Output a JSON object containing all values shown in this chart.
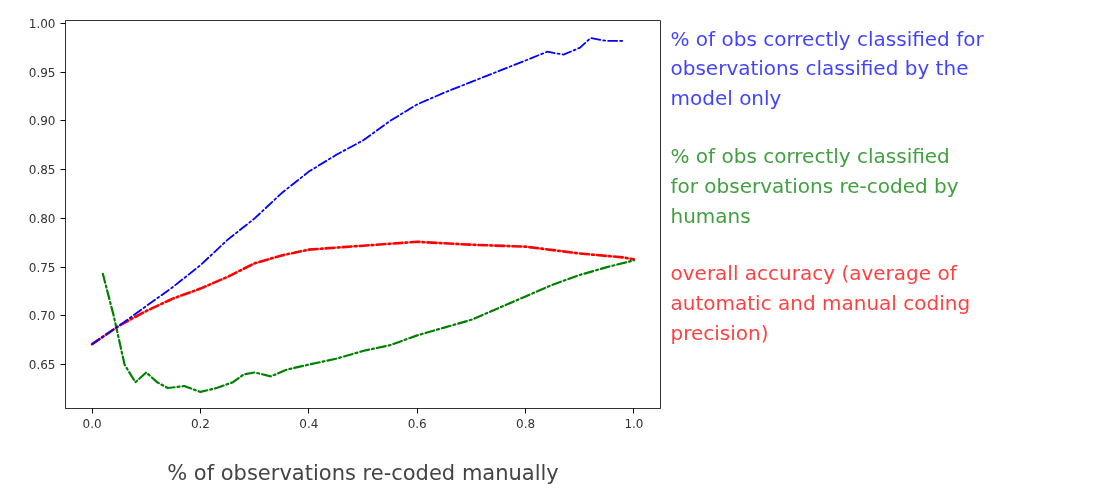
{
  "chart_data": {
    "type": "line",
    "xlabel": "% of observations re-coded manually",
    "xlim": [
      -0.049,
      1.049
    ],
    "ylim": [
      0.605,
      1.003
    ],
    "xticks": [
      {
        "value": 0,
        "label": "0.0"
      },
      0.2,
      0.4,
      0.6,
      0.8,
      {
        "value": 1,
        "label": "1.0"
      }
    ],
    "yticks": [
      0.65,
      {
        "value": 0.7,
        "label": "0.70"
      },
      0.75,
      {
        "value": 0.8,
        "label": "0.80"
      },
      0.85,
      {
        "value": 0.9,
        "label": "0.90"
      },
      0.95,
      {
        "value": 1.0,
        "label": "1.00"
      }
    ],
    "grid": false,
    "line_style": "dashdot",
    "marker": "none",
    "series": [
      {
        "name": "% of obs correctly classified for observations classified by the model only",
        "color": "#0000ff",
        "x": [
          0,
          0.05,
          0.1,
          0.15,
          0.2,
          0.25,
          0.3,
          0.35,
          0.4,
          0.45,
          0.5,
          0.55,
          0.6,
          0.65,
          0.7,
          0.75,
          0.8,
          0.84,
          0.87,
          0.9,
          0.92,
          0.95,
          0.98
        ],
        "values": [
          0.671,
          0.69,
          0.71,
          0.73,
          0.752,
          0.778,
          0.8,
          0.826,
          0.848,
          0.865,
          0.88,
          0.9,
          0.917,
          0.929,
          0.94,
          0.951,
          0.962,
          0.971,
          0.968,
          0.975,
          0.985,
          0.982,
          0.982
        ]
      },
      {
        "name": "% of obs correctly classified for observations re-coded by humans",
        "color": "#008000",
        "x": [
          0.02,
          0.04,
          0.06,
          0.08,
          0.1,
          0.12,
          0.14,
          0.17,
          0.2,
          0.23,
          0.26,
          0.28,
          0.3,
          0.33,
          0.36,
          0.4,
          0.45,
          0.5,
          0.55,
          0.6,
          0.65,
          0.7,
          0.75,
          0.8,
          0.85,
          0.9,
          0.95,
          1.0
        ],
        "values": [
          0.743,
          0.7,
          0.65,
          0.632,
          0.642,
          0.632,
          0.626,
          0.628,
          0.622,
          0.626,
          0.632,
          0.64,
          0.642,
          0.638,
          0.645,
          0.65,
          0.656,
          0.664,
          0.67,
          0.68,
          0.688,
          0.696,
          0.708,
          0.72,
          0.732,
          0.742,
          0.75,
          0.757
        ]
      },
      {
        "name": "overall accuracy (average of automatic and manual coding precision)",
        "color": "#ff0000",
        "x": [
          0,
          0.05,
          0.1,
          0.15,
          0.2,
          0.25,
          0.3,
          0.35,
          0.4,
          0.5,
          0.6,
          0.7,
          0.8,
          0.9,
          0.98,
          1.0
        ],
        "values": [
          0.671,
          0.69,
          0.705,
          0.718,
          0.728,
          0.74,
          0.754,
          0.762,
          0.768,
          0.772,
          0.776,
          0.773,
          0.771,
          0.764,
          0.76,
          0.758
        ]
      }
    ]
  }
}
